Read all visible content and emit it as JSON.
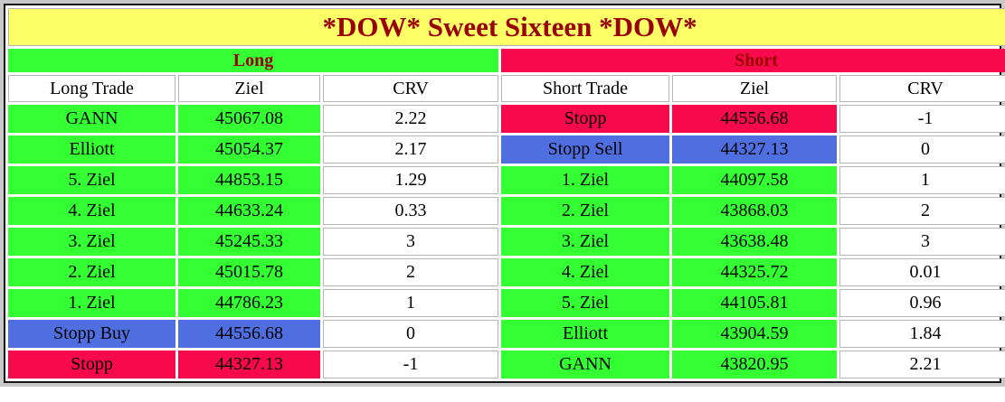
{
  "title": "*DOW* Sweet Sixteen *DOW*",
  "palette": {
    "yellow": "#ffff66",
    "green": "#33ff33",
    "red": "#f8094c",
    "blue": "#4f6fe0",
    "white": "#ffffff",
    "header_text": "#990000",
    "frame": "#c9c9c9"
  },
  "sections": {
    "long": {
      "label": "Long",
      "headers": [
        "Long Trade",
        "Ziel",
        "CRV"
      ]
    },
    "short": {
      "label": "Short",
      "headers": [
        "Short Trade",
        "Ziel",
        "CRV"
      ]
    }
  },
  "rows": [
    {
      "long": {
        "trade": "GANN",
        "ziel": "45067.08",
        "crv": "2.22",
        "color": "green"
      },
      "short": {
        "trade": "Stopp",
        "ziel": "44556.68",
        "crv": "-1",
        "color": "red"
      }
    },
    {
      "long": {
        "trade": "Elliott",
        "ziel": "45054.37",
        "crv": "2.17",
        "color": "green"
      },
      "short": {
        "trade": "Stopp Sell",
        "ziel": "44327.13",
        "crv": "0",
        "color": "blue"
      }
    },
    {
      "long": {
        "trade": "5. Ziel",
        "ziel": "44853.15",
        "crv": "1.29",
        "color": "green"
      },
      "short": {
        "trade": "1. Ziel",
        "ziel": "44097.58",
        "crv": "1",
        "color": "green"
      }
    },
    {
      "long": {
        "trade": "4. Ziel",
        "ziel": "44633.24",
        "crv": "0.33",
        "color": "green"
      },
      "short": {
        "trade": "2. Ziel",
        "ziel": "43868.03",
        "crv": "2",
        "color": "green"
      }
    },
    {
      "long": {
        "trade": "3. Ziel",
        "ziel": "45245.33",
        "crv": "3",
        "color": "green"
      },
      "short": {
        "trade": "3. Ziel",
        "ziel": "43638.48",
        "crv": "3",
        "color": "green"
      }
    },
    {
      "long": {
        "trade": "2. Ziel",
        "ziel": "45015.78",
        "crv": "2",
        "color": "green"
      },
      "short": {
        "trade": "4. Ziel",
        "ziel": "44325.72",
        "crv": "0.01",
        "color": "green"
      }
    },
    {
      "long": {
        "trade": "1. Ziel",
        "ziel": "44786.23",
        "crv": "1",
        "color": "green"
      },
      "short": {
        "trade": "5. Ziel",
        "ziel": "44105.81",
        "crv": "0.96",
        "color": "green"
      }
    },
    {
      "long": {
        "trade": "Stopp Buy",
        "ziel": "44556.68",
        "crv": "0",
        "color": "blue"
      },
      "short": {
        "trade": "Elliott",
        "ziel": "43904.59",
        "crv": "1.84",
        "color": "green"
      }
    },
    {
      "long": {
        "trade": "Stopp",
        "ziel": "44327.13",
        "crv": "-1",
        "color": "red"
      },
      "short": {
        "trade": "GANN",
        "ziel": "43820.95",
        "crv": "2.21",
        "color": "green"
      }
    }
  ],
  "chart_data": {
    "type": "table",
    "title": "*DOW* Sweet Sixteen *DOW*",
    "sections": [
      "Long",
      "Short"
    ],
    "columns": [
      "Long Trade",
      "Ziel",
      "CRV",
      "Short Trade",
      "Ziel",
      "CRV"
    ],
    "rows": [
      [
        "GANN",
        45067.08,
        2.22,
        "Stopp",
        44556.68,
        -1
      ],
      [
        "Elliott",
        45054.37,
        2.17,
        "Stopp Sell",
        44327.13,
        0
      ],
      [
        "5. Ziel",
        44853.15,
        1.29,
        "1. Ziel",
        44097.58,
        1
      ],
      [
        "4. Ziel",
        44633.24,
        0.33,
        "2. Ziel",
        43868.03,
        2
      ],
      [
        "3. Ziel",
        45245.33,
        3,
        "3. Ziel",
        43638.48,
        3
      ],
      [
        "2. Ziel",
        45015.78,
        2,
        "4. Ziel",
        44325.72,
        0.01
      ],
      [
        "1. Ziel",
        44786.23,
        1,
        "5. Ziel",
        44105.81,
        0.96
      ],
      [
        "Stopp Buy",
        44556.68,
        0,
        "Elliott",
        43904.59,
        1.84
      ],
      [
        "Stopp",
        44327.13,
        -1,
        "GANN",
        43820.95,
        2.21
      ]
    ],
    "cell_color_coding": {
      "green": "target/entry levels",
      "blue": "Stopp Buy / Stopp Sell levels",
      "red": "Stopp levels"
    }
  }
}
